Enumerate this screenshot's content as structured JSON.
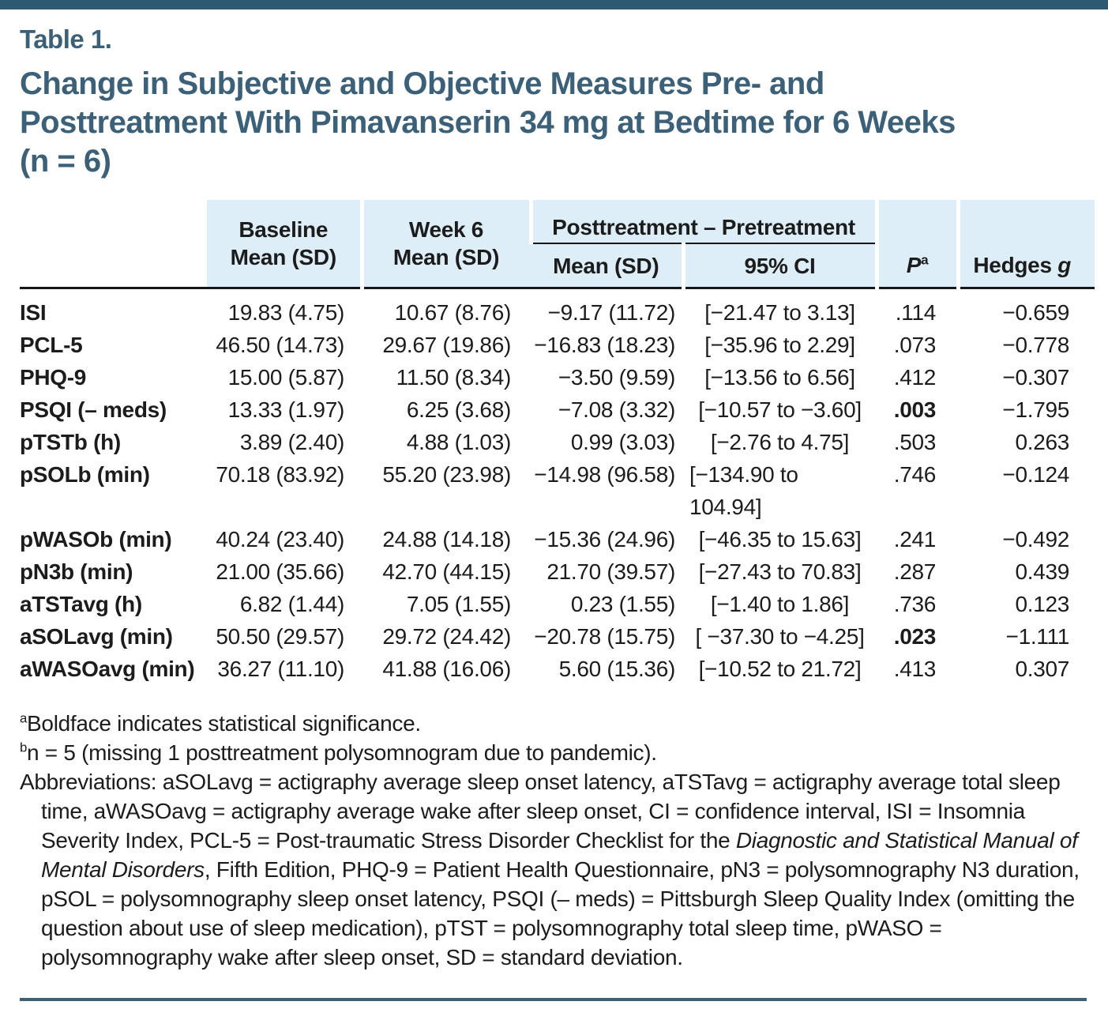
{
  "colors": {
    "accent_slate_blue": "#3c6077",
    "header_band_blue": "#ddeef9",
    "top_bar": "#2d5a72"
  },
  "page": {
    "table_label": "Table 1.",
    "title_lines": [
      "Change in Subjective and Objective Measures Pre- and",
      "Posttreatment With Pimavanserin 34 mg at Bedtime for 6 Weeks",
      "(n = 6)"
    ]
  },
  "table": {
    "header": {
      "baseline_line1": "Baseline",
      "baseline_line2": "Mean (SD)",
      "week6_line1": "Week 6",
      "week6_line2": "Mean (SD)",
      "group": "Posttreatment – Pretreatment",
      "group_mean": "Mean (SD)",
      "group_ci": "95% CI",
      "p": "P",
      "p_sup": "a",
      "hedges": "Hedges ",
      "hedges_g": "g"
    },
    "rows": [
      {
        "label": "ISI",
        "baseline": "19.83 (4.75)",
        "week6": "10.67 (8.76)",
        "change": "−9.17 (11.72)",
        "ci": "[−21.47 to 3.13]",
        "p": ".114",
        "p_bold": false,
        "hedges": "−0.659"
      },
      {
        "label": "PCL-5",
        "baseline": "46.50 (14.73)",
        "week6": "29.67 (19.86)",
        "change": "−16.83 (18.23)",
        "ci": "[−35.96 to 2.29]",
        "p": ".073",
        "p_bold": false,
        "hedges": "−0.778"
      },
      {
        "label": "PHQ-9",
        "baseline": "15.00 (5.87)",
        "week6": "11.50 (8.34)",
        "change": "−3.50 (9.59)",
        "ci": "[−13.56 to 6.56]",
        "p": ".412",
        "p_bold": false,
        "hedges": "−0.307"
      },
      {
        "label": "PSQI (– meds)",
        "baseline": "13.33 (1.97)",
        "week6": "6.25 (3.68)",
        "change": "−7.08 (3.32)",
        "ci": "[−10.57 to −3.60]",
        "p": ".003",
        "p_bold": true,
        "hedges": "−1.795"
      },
      {
        "label": "pTSTb (h)",
        "baseline": "3.89 (2.40)",
        "week6": "4.88 (1.03)",
        "change": "0.99 (3.03)",
        "ci": "[−2.76 to 4.75]",
        "p": ".503",
        "p_bold": false,
        "hedges": "0.263"
      },
      {
        "label": "pSOLb (min)",
        "baseline": "70.18 (83.92)",
        "week6": "55.20 (23.98)",
        "change": "−14.98 (96.58)",
        "ci": "[−134.90 to\n104.94]",
        "p": ".746",
        "p_bold": false,
        "hedges": "−0.124"
      },
      {
        "label": "pWASOb (min)",
        "baseline": "40.24 (23.40)",
        "week6": "24.88 (14.18)",
        "change": "−15.36 (24.96)",
        "ci": "[−46.35 to 15.63]",
        "p": ".241",
        "p_bold": false,
        "hedges": "−0.492"
      },
      {
        "label": "pN3b (min)",
        "baseline": "21.00 (35.66)",
        "week6": "42.70 (44.15)",
        "change": "21.70 (39.57)",
        "ci": "[−27.43 to 70.83]",
        "p": ".287",
        "p_bold": false,
        "hedges": "0.439"
      },
      {
        "label": "aTSTavg (h)",
        "baseline": "6.82 (1.44)",
        "week6": "7.05 (1.55)",
        "change": "0.23 (1.55)",
        "ci": "[−1.40 to 1.86]",
        "p": ".736",
        "p_bold": false,
        "hedges": "0.123"
      },
      {
        "label": "aSOLavg (min)",
        "baseline": "50.50 (29.57)",
        "week6": "29.72 (24.42)",
        "change": "−20.78 (15.75)",
        "ci": "[ −37.30 to −4.25]",
        "p": ".023",
        "p_bold": true,
        "hedges": "−1.111"
      },
      {
        "label": "aWASOavg (min)",
        "baseline": "36.27 (11.10)",
        "week6": "41.88 (16.06)",
        "change": "5.60 (15.36)",
        "ci": "[−10.52 to 21.72]",
        "p": ".413",
        "p_bold": false,
        "hedges": "0.307"
      }
    ]
  },
  "footnotes": {
    "a_sup": "a",
    "a_text": "Boldface indicates statistical significance.",
    "b_sup": "b",
    "b_text": "n = 5 (missing 1 posttreatment polysomnogram due to pandemic).",
    "abbr_part1": "Abbreviations: aSOLavg = actigraphy average sleep onset latency, aTSTavg = actigraphy average total sleep time, aWASOavg = actigraphy average wake after sleep onset, CI = confidence interval, ISI = Insomnia Severity Index, PCL-5 = Post-traumatic Stress Disorder Checklist for the ",
    "abbr_italic": "Diagnostic and Statistical Manual of Mental Disorders",
    "abbr_part2": ", Fifth Edition, PHQ-9 = Patient Health Questionnaire, pN3 = polysomnography N3 duration, pSOL = polysomnography sleep onset latency, PSQI (– meds) = Pittsburgh Sleep Quality Index (omitting the question about use of sleep medication), pTST = polysomnography total sleep time, pWASO = polysomnography wake after sleep onset, SD = standard deviation."
  }
}
